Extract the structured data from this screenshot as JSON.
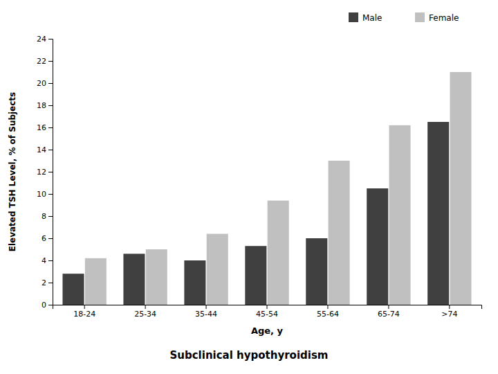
{
  "chart_data": {
    "type": "bar",
    "subtitle": "Subclinical hypothyroidism",
    "xlabel": "Age, y",
    "ylabel": "Elevated TSH Level, % of Subjects",
    "categories": [
      "18-24",
      "25-34",
      "35-44",
      "45-54",
      "55-64",
      "65-74",
      ">74"
    ],
    "series": [
      {
        "name": "Male",
        "color": "#404040",
        "values": [
          2.8,
          4.6,
          4.0,
          5.3,
          6.0,
          10.5,
          16.5
        ]
      },
      {
        "name": "Female",
        "color": "#c0c0c0",
        "values": [
          4.2,
          5.0,
          6.4,
          9.4,
          13.0,
          16.2,
          21.0
        ]
      }
    ],
    "ylim": [
      0,
      24
    ],
    "yticks": [
      0,
      2,
      4,
      6,
      8,
      10,
      12,
      14,
      16,
      18,
      20,
      22,
      24
    ],
    "grid": false,
    "legend": "upper right"
  }
}
